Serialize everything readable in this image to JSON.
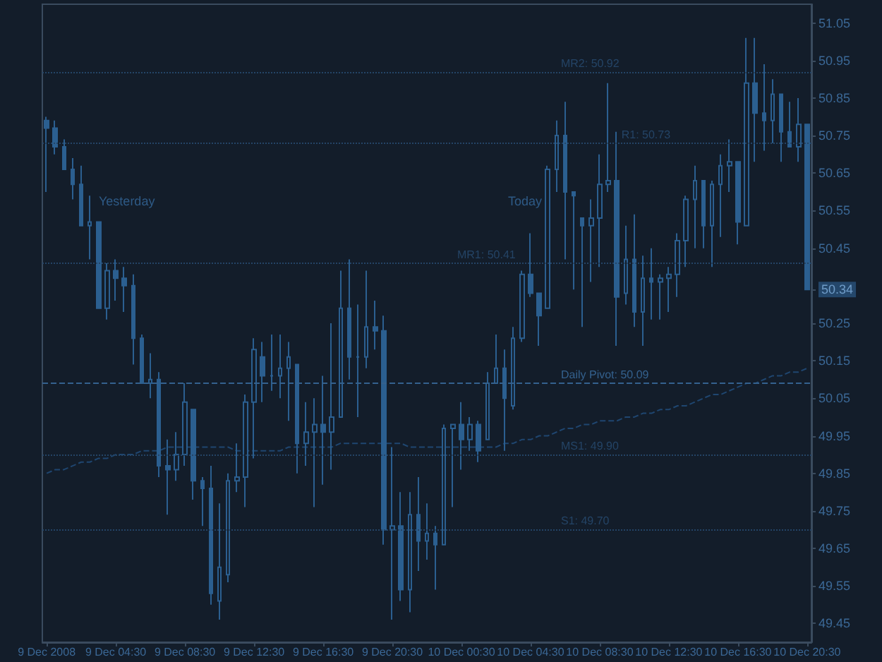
{
  "chart_data": {
    "type": "candlestick",
    "categories": [
      "9 Dec 2008",
      null,
      null,
      null,
      null,
      null,
      null,
      null,
      "9 Dec 04:30",
      null,
      null,
      null,
      null,
      null,
      null,
      null,
      "9 Dec 08:30",
      null,
      null,
      null,
      null,
      null,
      null,
      null,
      "9 Dec 12:30",
      null,
      null,
      null,
      null,
      null,
      null,
      null,
      "9 Dec 16:30",
      null,
      null,
      null,
      null,
      null,
      null,
      null,
      "9 Dec 20:30",
      null,
      null,
      null,
      null,
      null,
      null,
      null,
      "10 Dec 00:30",
      null,
      null,
      null,
      null,
      null,
      null,
      null,
      "10 Dec 04:30",
      null,
      null,
      null,
      null,
      null,
      null,
      null,
      "10 Dec 08:30",
      null,
      null,
      null,
      null,
      null,
      null,
      null,
      "10 Dec 12:30",
      null,
      null,
      null,
      null,
      null,
      null,
      null,
      "10 Dec 16:30",
      null,
      null,
      null,
      null,
      null,
      null,
      null,
      "10 Dec 20:30"
    ],
    "series": [
      {
        "color": "#2b5f90",
        "ohlc": [
          [
            50.79,
            50.8,
            50.6,
            50.77
          ],
          [
            50.77,
            50.79,
            50.7,
            50.72
          ],
          [
            50.72,
            50.74,
            50.66,
            50.66
          ],
          [
            50.66,
            50.69,
            50.58,
            50.62
          ],
          [
            50.62,
            50.67,
            50.51,
            50.51
          ],
          [
            50.51,
            50.59,
            50.42,
            50.52
          ],
          [
            50.52,
            50.52,
            50.29,
            50.29
          ],
          [
            50.29,
            50.41,
            50.26,
            50.39
          ],
          [
            50.39,
            50.42,
            50.31,
            50.37
          ],
          [
            50.37,
            50.4,
            50.28,
            50.35
          ],
          [
            50.35,
            50.38,
            50.14,
            50.21
          ],
          [
            50.21,
            50.22,
            50.09,
            50.09
          ],
          [
            50.09,
            50.17,
            50.05,
            50.1
          ],
          [
            50.1,
            50.12,
            49.84,
            49.87
          ],
          [
            49.87,
            49.94,
            49.74,
            49.86
          ],
          [
            49.86,
            49.96,
            49.83,
            49.9
          ],
          [
            49.9,
            50.09,
            49.87,
            50.04
          ],
          [
            50.02,
            50.02,
            49.78,
            49.83
          ],
          [
            49.83,
            49.84,
            49.71,
            49.81
          ],
          [
            49.81,
            49.87,
            49.5,
            49.53
          ],
          [
            49.51,
            49.77,
            49.46,
            49.6
          ],
          [
            49.58,
            49.85,
            49.56,
            49.83
          ],
          [
            49.83,
            49.93,
            49.8,
            49.84
          ],
          [
            49.84,
            50.06,
            49.76,
            50.04
          ],
          [
            50.04,
            50.21,
            49.89,
            50.18
          ],
          [
            50.16,
            50.2,
            50.04,
            50.11
          ],
          [
            50.11,
            50.22,
            50.07,
            50.11
          ],
          [
            50.11,
            50.22,
            50.05,
            50.13
          ],
          [
            50.13,
            50.2,
            49.99,
            50.16
          ],
          [
            50.14,
            50.14,
            49.85,
            49.93
          ],
          [
            49.93,
            50.04,
            49.87,
            49.96
          ],
          [
            49.96,
            50.05,
            49.76,
            49.98
          ],
          [
            49.98,
            50.11,
            49.82,
            49.96
          ],
          [
            49.96,
            50.25,
            49.86,
            50.0
          ],
          [
            50.0,
            50.39,
            50.0,
            50.29
          ],
          [
            50.29,
            50.42,
            50.1,
            50.16
          ],
          [
            50.16,
            50.3,
            50.0,
            50.16
          ],
          [
            50.16,
            50.39,
            50.13,
            50.24
          ],
          [
            50.24,
            50.31,
            50.18,
            50.23
          ],
          [
            50.23,
            50.27,
            49.66,
            49.7
          ],
          [
            49.7,
            49.92,
            49.46,
            49.71
          ],
          [
            49.71,
            49.8,
            49.51,
            49.54
          ],
          [
            49.54,
            49.8,
            49.48,
            49.74
          ],
          [
            49.74,
            49.84,
            49.59,
            49.67
          ],
          [
            49.67,
            49.77,
            49.62,
            49.69
          ],
          [
            49.69,
            49.71,
            49.54,
            49.66
          ],
          [
            49.66,
            49.98,
            49.66,
            49.97
          ],
          [
            49.97,
            49.98,
            49.76,
            49.98
          ],
          [
            49.98,
            50.04,
            49.86,
            49.94
          ],
          [
            49.94,
            50.0,
            49.91,
            49.98
          ],
          [
            49.98,
            49.99,
            49.88,
            49.91
          ],
          [
            49.94,
            50.12,
            49.94,
            50.09
          ],
          [
            50.09,
            50.22,
            50.09,
            50.13
          ],
          [
            50.13,
            50.18,
            49.91,
            50.05
          ],
          [
            50.03,
            50.24,
            50.02,
            50.21
          ],
          [
            50.21,
            50.39,
            50.2,
            50.38
          ],
          [
            50.38,
            50.49,
            50.32,
            50.33
          ],
          [
            50.33,
            50.33,
            50.19,
            50.27
          ],
          [
            50.29,
            50.67,
            50.29,
            50.66
          ],
          [
            50.66,
            50.79,
            50.6,
            50.75
          ],
          [
            50.75,
            50.84,
            50.42,
            50.6
          ],
          [
            50.6,
            50.6,
            50.34,
            50.59
          ],
          [
            50.53,
            50.53,
            50.24,
            50.51
          ],
          [
            50.51,
            50.58,
            50.36,
            50.53
          ],
          [
            50.53,
            50.7,
            50.4,
            50.62
          ],
          [
            50.62,
            50.89,
            50.6,
            50.63
          ],
          [
            50.63,
            50.76,
            50.19,
            50.32
          ],
          [
            50.33,
            50.51,
            50.3,
            50.42
          ],
          [
            50.42,
            50.54,
            50.24,
            50.28
          ],
          [
            50.28,
            50.43,
            50.19,
            50.37
          ],
          [
            50.37,
            50.45,
            50.26,
            50.36
          ],
          [
            50.36,
            50.38,
            50.26,
            50.37
          ],
          [
            50.37,
            50.4,
            50.28,
            50.38
          ],
          [
            50.38,
            50.49,
            50.32,
            50.47
          ],
          [
            50.47,
            50.59,
            50.4,
            50.58
          ],
          [
            50.58,
            50.67,
            50.45,
            50.63
          ],
          [
            50.63,
            50.63,
            50.45,
            50.51
          ],
          [
            50.51,
            50.63,
            50.4,
            50.62
          ],
          [
            50.62,
            50.7,
            50.48,
            50.67
          ],
          [
            50.67,
            50.74,
            50.6,
            50.68
          ],
          [
            50.68,
            50.68,
            50.46,
            50.52
          ],
          [
            50.51,
            51.01,
            50.51,
            50.89
          ],
          [
            50.89,
            51.01,
            50.68,
            50.81
          ],
          [
            50.81,
            50.94,
            50.71,
            50.79
          ],
          [
            50.79,
            50.9,
            50.73,
            50.86
          ],
          [
            50.86,
            50.86,
            50.68,
            50.76
          ],
          [
            50.76,
            50.84,
            50.72,
            50.72
          ],
          [
            50.72,
            50.85,
            50.68,
            50.78
          ],
          [
            50.78,
            50.78,
            50.34,
            50.34
          ]
        ]
      },
      {
        "type": "line",
        "color": "#1f4670",
        "line_style": "dashed",
        "values": [
          49.85,
          49.86,
          49.86,
          49.87,
          49.88,
          49.88,
          49.89,
          49.89,
          49.9,
          49.9,
          49.9,
          49.91,
          49.91,
          49.91,
          49.92,
          49.92,
          49.92,
          49.92,
          49.92,
          49.92,
          49.92,
          49.92,
          49.91,
          49.91,
          49.91,
          49.91,
          49.91,
          49.91,
          49.92,
          49.92,
          49.92,
          49.92,
          49.92,
          49.92,
          49.93,
          49.93,
          49.93,
          49.93,
          49.93,
          49.93,
          49.93,
          49.93,
          49.92,
          49.92,
          49.92,
          49.92,
          49.92,
          49.92,
          49.92,
          49.92,
          49.92,
          49.92,
          49.92,
          49.93,
          49.93,
          49.94,
          49.94,
          49.95,
          49.95,
          49.96,
          49.97,
          49.97,
          49.98,
          49.98,
          49.99,
          49.99,
          49.99,
          50.0,
          50.0,
          50.01,
          50.01,
          50.02,
          50.02,
          50.03,
          50.03,
          50.04,
          50.05,
          50.06,
          50.06,
          50.07,
          50.08,
          50.09,
          50.09,
          50.1,
          50.11,
          50.11,
          50.12,
          50.12,
          50.13
        ]
      }
    ],
    "ylim": [
      49.4,
      51.1
    ],
    "yticks": [
      51.05,
      50.95,
      50.85,
      50.75,
      50.65,
      50.55,
      50.45,
      {
        "value": 50.34,
        "label": "50.34"
      },
      50.25,
      50.15,
      50.05,
      49.95,
      49.85,
      49.75,
      49.65,
      49.55,
      49.45
    ],
    "ref_lines": [
      {
        "axis": "y",
        "value": 50.92,
        "label": "MR2: 50.92",
        "color": "#244466",
        "line_style": "dotted"
      },
      {
        "axis": "y",
        "value": 50.73,
        "label": "R1: 50.73",
        "color": "#244466",
        "line_style": "dotted"
      },
      {
        "axis": "y",
        "value": 50.41,
        "label": "MR1: 50.41",
        "color": "#244466",
        "line_style": "dotted"
      },
      {
        "axis": "y",
        "value": 50.09,
        "label": "Daily Pivot: 50.09",
        "color": "#34618e",
        "line_style": "dashed"
      },
      {
        "axis": "y",
        "value": 49.9,
        "label": "MS1: 49.90",
        "color": "#244466",
        "line_style": "dotted"
      },
      {
        "axis": "y",
        "value": 49.7,
        "label": "S1: 49.70",
        "color": "#244466",
        "line_style": "dotted"
      }
    ],
    "annotations": [
      "Yesterday",
      "Today"
    ],
    "marker": "none"
  }
}
